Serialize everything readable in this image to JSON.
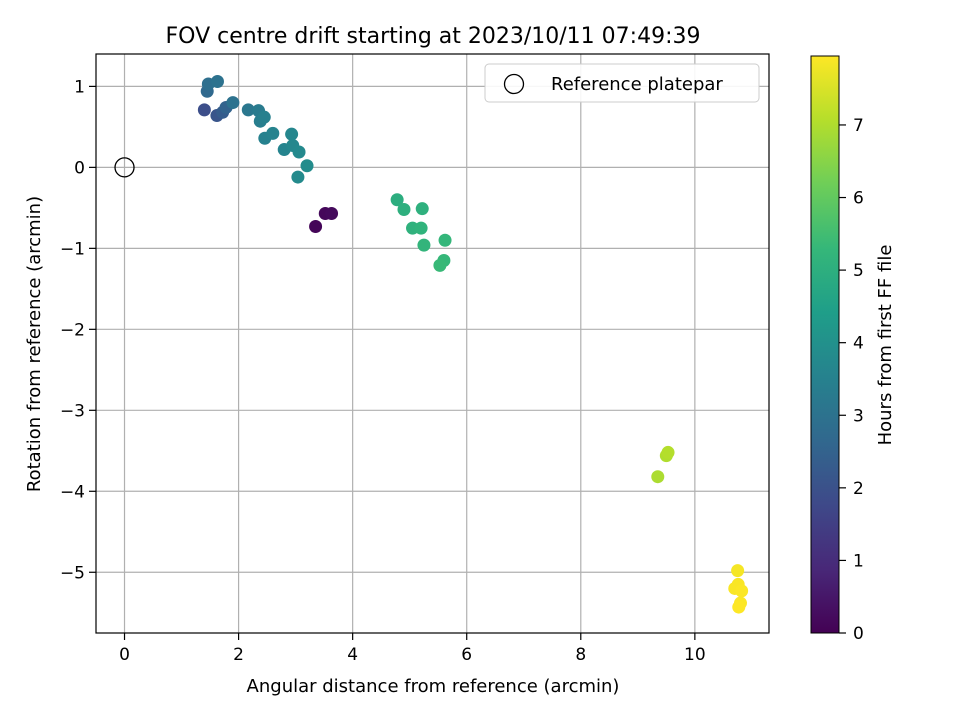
{
  "chart_data": {
    "type": "scatter",
    "title": "FOV centre drift starting at 2023/10/11 07:49:39",
    "xlabel": "Angular distance from reference (arcmin)",
    "ylabel": "Rotation from reference (arcmin)",
    "xlim": [
      -0.5,
      11.3
    ],
    "ylim": [
      -5.75,
      1.4
    ],
    "xticks": [
      0,
      2,
      4,
      6,
      8,
      10
    ],
    "yticks": [
      -5,
      -4,
      -3,
      -2,
      -1,
      0,
      1
    ],
    "grid": true,
    "legend": {
      "placement": "top-right",
      "entries": [
        "Reference platepar"
      ]
    },
    "reference_point": {
      "label": "Reference platepar",
      "x": 0,
      "y": 0
    },
    "colorbar": {
      "label": "Hours from first FF file",
      "range": [
        0,
        7.95
      ],
      "ticks": [
        0,
        1,
        2,
        3,
        4,
        5,
        6,
        7
      ],
      "colormap": "viridis"
    },
    "points": [
      {
        "x": 3.35,
        "y": -0.73,
        "t": 0.1
      },
      {
        "x": 3.52,
        "y": -0.57,
        "t": 0.15
      },
      {
        "x": 3.63,
        "y": -0.57,
        "t": 0.2
      },
      {
        "x": 1.4,
        "y": 0.71,
        "t": 1.9
      },
      {
        "x": 1.62,
        "y": 0.64,
        "t": 2.1
      },
      {
        "x": 1.72,
        "y": 0.68,
        "t": 2.3
      },
      {
        "x": 1.78,
        "y": 0.74,
        "t": 2.5
      },
      {
        "x": 1.45,
        "y": 0.94,
        "t": 2.7
      },
      {
        "x": 1.47,
        "y": 1.03,
        "t": 2.9
      },
      {
        "x": 1.63,
        "y": 1.06,
        "t": 3.0
      },
      {
        "x": 1.9,
        "y": 0.8,
        "t": 3.0
      },
      {
        "x": 2.17,
        "y": 0.71,
        "t": 3.15
      },
      {
        "x": 2.35,
        "y": 0.7,
        "t": 3.3
      },
      {
        "x": 2.38,
        "y": 0.57,
        "t": 3.4
      },
      {
        "x": 2.45,
        "y": 0.62,
        "t": 3.45
      },
      {
        "x": 2.46,
        "y": 0.36,
        "t": 3.5
      },
      {
        "x": 2.6,
        "y": 0.42,
        "t": 3.55
      },
      {
        "x": 2.8,
        "y": 0.22,
        "t": 3.6
      },
      {
        "x": 2.93,
        "y": 0.41,
        "t": 3.65
      },
      {
        "x": 2.95,
        "y": 0.27,
        "t": 3.7
      },
      {
        "x": 3.06,
        "y": 0.19,
        "t": 3.75
      },
      {
        "x": 3.04,
        "y": -0.12,
        "t": 3.8
      },
      {
        "x": 3.2,
        "y": 0.02,
        "t": 3.85
      },
      {
        "x": 4.78,
        "y": -0.4,
        "t": 4.95
      },
      {
        "x": 4.9,
        "y": -0.52,
        "t": 5.0
      },
      {
        "x": 5.22,
        "y": -0.51,
        "t": 5.05
      },
      {
        "x": 5.05,
        "y": -0.75,
        "t": 5.1
      },
      {
        "x": 5.2,
        "y": -0.75,
        "t": 5.15
      },
      {
        "x": 5.25,
        "y": -0.96,
        "t": 5.2
      },
      {
        "x": 5.62,
        "y": -0.9,
        "t": 5.25
      },
      {
        "x": 5.6,
        "y": -1.15,
        "t": 5.3
      },
      {
        "x": 5.53,
        "y": -1.21,
        "t": 5.35
      },
      {
        "x": 9.35,
        "y": -3.82,
        "t": 6.95
      },
      {
        "x": 9.5,
        "y": -3.56,
        "t": 7.0
      },
      {
        "x": 9.53,
        "y": -3.52,
        "t": 7.05
      },
      {
        "x": 10.75,
        "y": -4.98,
        "t": 7.85
      },
      {
        "x": 10.7,
        "y": -5.2,
        "t": 7.9
      },
      {
        "x": 10.76,
        "y": -5.15,
        "t": 7.9
      },
      {
        "x": 10.82,
        "y": -5.23,
        "t": 7.92
      },
      {
        "x": 10.8,
        "y": -5.38,
        "t": 7.93
      },
      {
        "x": 10.77,
        "y": -5.43,
        "t": 7.95
      }
    ]
  }
}
